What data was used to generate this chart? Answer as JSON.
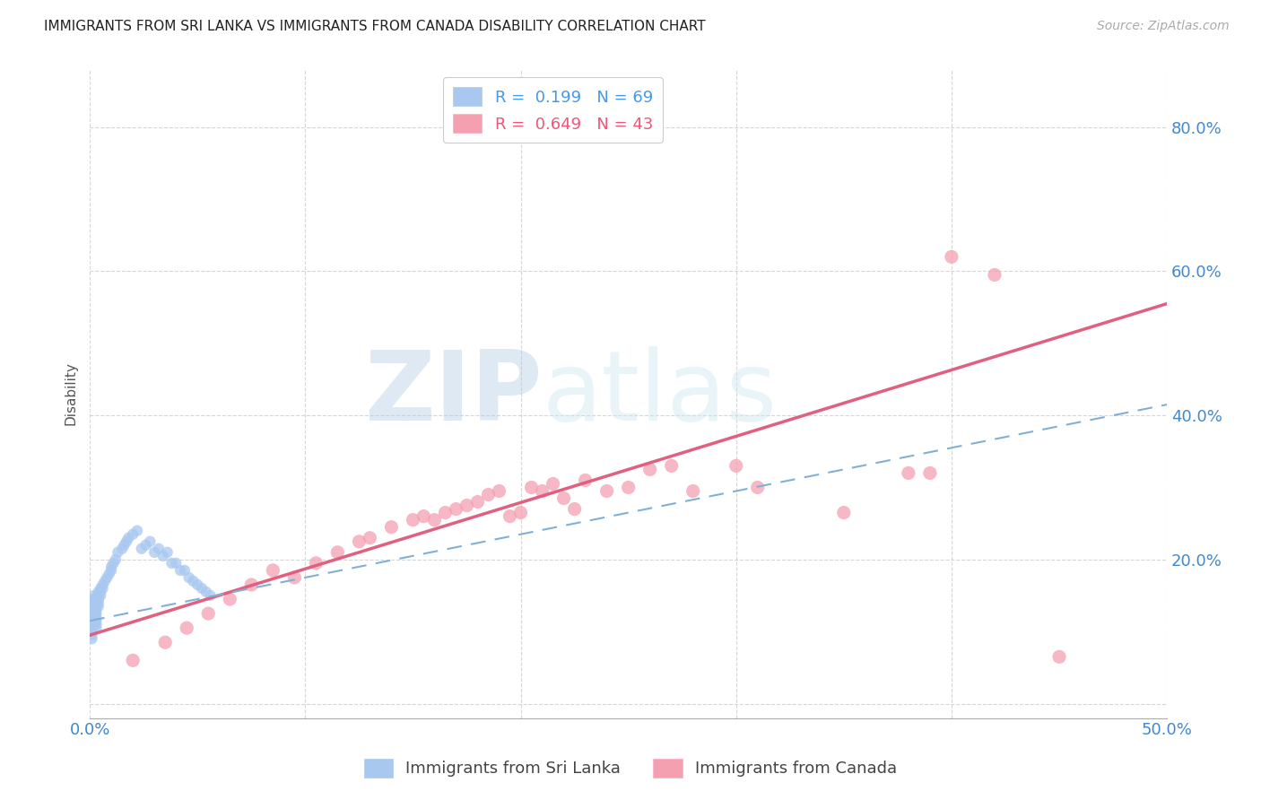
{
  "title": "IMMIGRANTS FROM SRI LANKA VS IMMIGRANTS FROM CANADA DISABILITY CORRELATION CHART",
  "source": "Source: ZipAtlas.com",
  "ylabel": "Disability",
  "xlim": [
    0.0,
    0.5
  ],
  "ylim": [
    -0.02,
    0.88
  ],
  "sri_lanka_color": "#a8c8f0",
  "canada_color": "#f4a0b0",
  "sri_lanka_line_color": "#80b0d8",
  "canada_line_color": "#e06080",
  "watermark_zip": "ZIP",
  "watermark_atlas": "atlas",
  "sri_lanka_R": 0.199,
  "sri_lanka_N": 69,
  "canada_R": 0.649,
  "canada_N": 43,
  "sri_lanka_x": [
    0.001,
    0.001,
    0.001,
    0.001,
    0.001,
    0.001,
    0.001,
    0.001,
    0.001,
    0.001,
    0.002,
    0.002,
    0.002,
    0.002,
    0.002,
    0.002,
    0.002,
    0.002,
    0.002,
    0.002,
    0.003,
    0.003,
    0.003,
    0.003,
    0.003,
    0.003,
    0.003,
    0.003,
    0.004,
    0.004,
    0.004,
    0.004,
    0.004,
    0.005,
    0.005,
    0.005,
    0.006,
    0.006,
    0.007,
    0.008,
    0.009,
    0.01,
    0.01,
    0.011,
    0.012,
    0.013,
    0.015,
    0.016,
    0.017,
    0.018,
    0.02,
    0.022,
    0.024,
    0.026,
    0.028,
    0.03,
    0.032,
    0.034,
    0.036,
    0.038,
    0.04,
    0.042,
    0.044,
    0.046,
    0.048,
    0.05,
    0.052,
    0.054,
    0.056
  ],
  "sri_lanka_y": [
    0.135,
    0.13,
    0.125,
    0.12,
    0.115,
    0.11,
    0.105,
    0.1,
    0.095,
    0.09,
    0.145,
    0.14,
    0.135,
    0.13,
    0.125,
    0.12,
    0.115,
    0.11,
    0.15,
    0.145,
    0.14,
    0.135,
    0.13,
    0.125,
    0.12,
    0.115,
    0.11,
    0.105,
    0.155,
    0.15,
    0.145,
    0.14,
    0.135,
    0.16,
    0.155,
    0.15,
    0.165,
    0.16,
    0.17,
    0.175,
    0.18,
    0.185,
    0.19,
    0.195,
    0.2,
    0.21,
    0.215,
    0.22,
    0.225,
    0.23,
    0.235,
    0.24,
    0.215,
    0.22,
    0.225,
    0.21,
    0.215,
    0.205,
    0.21,
    0.195,
    0.195,
    0.185,
    0.185,
    0.175,
    0.17,
    0.165,
    0.16,
    0.155,
    0.15
  ],
  "canada_x": [
    0.02,
    0.035,
    0.045,
    0.055,
    0.065,
    0.075,
    0.085,
    0.095,
    0.105,
    0.115,
    0.125,
    0.13,
    0.14,
    0.15,
    0.155,
    0.16,
    0.165,
    0.17,
    0.175,
    0.18,
    0.185,
    0.19,
    0.195,
    0.2,
    0.205,
    0.21,
    0.215,
    0.22,
    0.225,
    0.23,
    0.24,
    0.25,
    0.26,
    0.27,
    0.28,
    0.3,
    0.31,
    0.35,
    0.38,
    0.39,
    0.4,
    0.42,
    0.45
  ],
  "canada_y": [
    0.06,
    0.085,
    0.105,
    0.125,
    0.145,
    0.165,
    0.185,
    0.175,
    0.195,
    0.21,
    0.225,
    0.23,
    0.245,
    0.255,
    0.26,
    0.255,
    0.265,
    0.27,
    0.275,
    0.28,
    0.29,
    0.295,
    0.26,
    0.265,
    0.3,
    0.295,
    0.305,
    0.285,
    0.27,
    0.31,
    0.295,
    0.3,
    0.325,
    0.33,
    0.295,
    0.33,
    0.3,
    0.265,
    0.32,
    0.32,
    0.62,
    0.595,
    0.065
  ]
}
